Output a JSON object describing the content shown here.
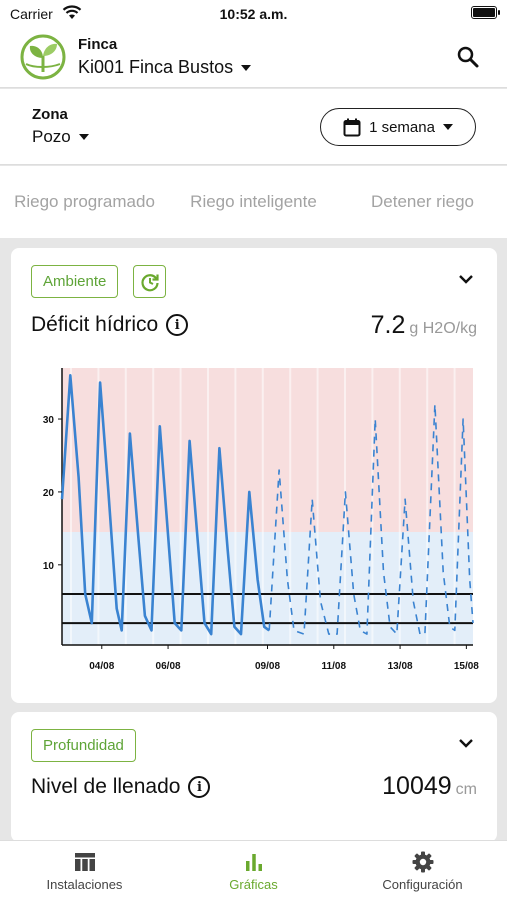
{
  "status_bar": {
    "carrier": "Carrier",
    "time": "10:52 a.m."
  },
  "header": {
    "finca_label": "Finca",
    "finca_value": "Ki001 Finca Bustos"
  },
  "zona": {
    "label": "Zona",
    "value": "Pozo",
    "period": "1 semana"
  },
  "tabs": [
    {
      "label": "Riego programado"
    },
    {
      "label": "Riego inteligente"
    },
    {
      "label": "Detener riego"
    }
  ],
  "cards": [
    {
      "chip": "Ambiente",
      "title": "Déficit hídrico",
      "value": "7.2",
      "unit": "g H2O/kg"
    },
    {
      "chip": "Profundidad",
      "title": "Nivel de llenado",
      "value": "10049",
      "unit": "cm"
    }
  ],
  "colors": {
    "accent": "#7cb342",
    "series": "#3a83d1",
    "band_high": "#f7dede",
    "band_low": "#e3eef9"
  },
  "chart_data": {
    "type": "line",
    "title": "",
    "xlabel": "",
    "ylabel": "",
    "ylim": [
      -1,
      37
    ],
    "xlim": [
      2.8,
      15.2
    ],
    "x_ticks": [
      {
        "x": 4,
        "label": "04/08"
      },
      {
        "x": 6,
        "label": "06/08"
      },
      {
        "x": 9,
        "label": "09/08"
      },
      {
        "x": 11,
        "label": "11/08"
      },
      {
        "x": 13,
        "label": "13/08"
      },
      {
        "x": 15,
        "label": "15/08"
      }
    ],
    "y_ticks": [
      10,
      20,
      30
    ],
    "bands": [
      {
        "from": 14.5,
        "to": 37,
        "color": "#f7dede"
      },
      {
        "from": -1,
        "to": 14.5,
        "color": "#e3eef9"
      }
    ],
    "reference_lines": [
      6,
      2
    ],
    "series": [
      {
        "style": "solid",
        "points": [
          [
            2.8,
            19
          ],
          [
            3.05,
            36
          ],
          [
            3.3,
            22
          ],
          [
            3.5,
            6
          ],
          [
            3.7,
            2
          ],
          [
            3.95,
            35
          ],
          [
            4.2,
            20
          ],
          [
            4.45,
            4
          ],
          [
            4.6,
            1
          ],
          [
            4.85,
            28
          ],
          [
            5.1,
            14
          ],
          [
            5.3,
            3
          ],
          [
            5.5,
            1
          ],
          [
            5.75,
            29
          ],
          [
            6.0,
            14
          ],
          [
            6.2,
            2
          ],
          [
            6.4,
            1
          ],
          [
            6.65,
            27
          ],
          [
            6.9,
            13
          ],
          [
            7.1,
            2
          ],
          [
            7.3,
            0.5
          ],
          [
            7.55,
            26
          ],
          [
            7.8,
            12
          ],
          [
            8.0,
            1.5
          ],
          [
            8.2,
            0.5
          ],
          [
            8.45,
            20
          ],
          [
            8.7,
            8
          ],
          [
            8.9,
            1.5
          ],
          [
            9.05,
            1
          ]
        ]
      },
      {
        "style": "dashed",
        "points": [
          [
            9.05,
            1
          ],
          [
            9.35,
            23
          ],
          [
            9.6,
            8
          ],
          [
            9.8,
            1
          ],
          [
            10.1,
            0.5
          ],
          [
            10.35,
            19
          ],
          [
            10.6,
            5
          ],
          [
            10.85,
            0.5
          ],
          [
            11.1,
            0.5
          ],
          [
            11.35,
            20
          ],
          [
            11.6,
            6
          ],
          [
            11.8,
            1
          ],
          [
            12.0,
            0.5
          ],
          [
            12.25,
            30
          ],
          [
            12.5,
            9
          ],
          [
            12.7,
            1.5
          ],
          [
            12.9,
            0.5
          ],
          [
            13.15,
            19
          ],
          [
            13.4,
            5
          ],
          [
            13.6,
            0.5
          ],
          [
            13.75,
            0.5
          ],
          [
            14.05,
            32
          ],
          [
            14.3,
            9
          ],
          [
            14.5,
            1.5
          ],
          [
            14.65,
            1
          ],
          [
            14.9,
            30
          ],
          [
            15.1,
            8
          ],
          [
            15.2,
            2
          ]
        ]
      }
    ]
  }
}
